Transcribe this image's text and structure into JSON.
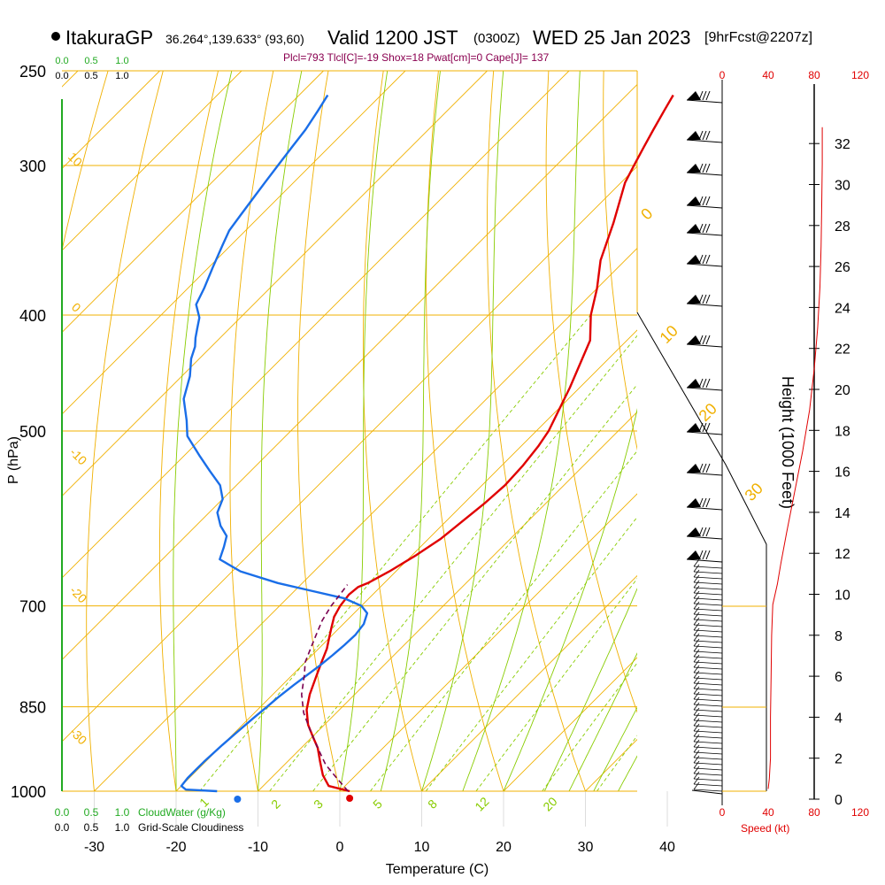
{
  "header": {
    "station": "ItakuraGP",
    "coords": "36.264°,139.633° (93,60)",
    "valid": "Valid 1200 JST",
    "utc": "(0300Z)",
    "date": "WED 25 Jan 2023",
    "forecast": "[9hrFcst@2207z]",
    "indices": "Plcl=793 Tlcl[C]=-19 Shox=18 Pwat[cm]=0 Cape[J]= 137"
  },
  "colors": {
    "isobar": "#f0b000",
    "isotherm": "#f0b000",
    "dry_adiabat": "#f0b000",
    "moist_adiabat": "#88cc00",
    "mixing_ratio": "#88cc00",
    "temperature": "#e00000",
    "dewpoint": "#1a6ee8",
    "parcel": "#7a0050",
    "cloud_water": "#22aa22",
    "speed": "#e00000",
    "barb": "#000000"
  },
  "chart_data": {
    "type": "line",
    "title": "Valid 1200 JST (0300Z) WED 25 Jan 2023",
    "xlabel": "Temperature (C)",
    "ylabel": "P (hPa)",
    "right_ylabel": "Height (1000 Feet)",
    "x_ticks": [
      "-30",
      "-20",
      "-10",
      "0",
      "10",
      "20",
      "30",
      "40"
    ],
    "y_ticks": [
      "250",
      "300",
      "400",
      "500",
      "700",
      "850",
      "1000"
    ],
    "height_ticks": [
      "0",
      "2",
      "4",
      "6",
      "8",
      "10",
      "12",
      "14",
      "16",
      "18",
      "20",
      "22",
      "24",
      "26",
      "28",
      "30",
      "32"
    ],
    "speed_ticks": [
      "0",
      "40",
      "80",
      "120"
    ],
    "speed_label": "Speed (kt)",
    "scale_top_green": [
      "0.0",
      "0.5",
      "1.0"
    ],
    "scale_top_black": [
      "0.0",
      "0.5",
      "1.0"
    ],
    "scale_bottom_green": [
      "0.0",
      "0.5",
      "1.0"
    ],
    "scale_bottom_black": [
      "0.0",
      "0.5",
      "1.0"
    ],
    "cloudwater_label": "CloudWater (g/Kg)",
    "cloudiness_label": "Grid-Scale Cloudiness",
    "moist_adiabat_labels": [
      "0",
      "10",
      "20",
      "30"
    ],
    "mixing_ratio_labels": [
      "1",
      "2",
      "3",
      "5",
      "8",
      "12",
      "20"
    ],
    "dry_adiabat_labels": [
      "10",
      "0",
      "-10",
      "-20",
      "-30"
    ],
    "series": [
      {
        "name": "Temperature",
        "points": [
          [
            1.2,
            1000
          ],
          [
            -2,
            990
          ],
          [
            -4,
            970
          ],
          [
            -6,
            945
          ],
          [
            -8,
            920
          ],
          [
            -10,
            900
          ],
          [
            -12,
            880
          ],
          [
            -14,
            855
          ],
          [
            -15.5,
            830
          ],
          [
            -17,
            800
          ],
          [
            -18,
            780
          ],
          [
            -19,
            760
          ],
          [
            -20,
            745
          ],
          [
            -21,
            730
          ],
          [
            -22,
            715
          ],
          [
            -22.6,
            700
          ],
          [
            -22.9,
            685
          ],
          [
            -22.7,
            675
          ],
          [
            -22,
            670
          ],
          [
            -20.8,
            655
          ],
          [
            -19.5,
            635
          ],
          [
            -18.5,
            615
          ],
          [
            -18,
            595
          ],
          [
            -17.5,
            575
          ],
          [
            -17.2,
            555
          ],
          [
            -17.4,
            535
          ],
          [
            -17.9,
            515
          ],
          [
            -18.5,
            500
          ],
          [
            -21.2,
            460
          ],
          [
            -24.5,
            420
          ],
          [
            -27.5,
            400
          ],
          [
            -30,
            380
          ],
          [
            -33,
            360
          ],
          [
            -36,
            335
          ],
          [
            -39.5,
            310
          ],
          [
            -40.5,
            300
          ],
          [
            -41.5,
            290
          ],
          [
            -42.5,
            280
          ],
          [
            -43.5,
            270
          ],
          [
            -44.3,
            262
          ]
        ]
      },
      {
        "name": "Dewpoint",
        "points": [
          [
            -15,
            1000
          ],
          [
            -19,
            997
          ],
          [
            -20,
            990
          ],
          [
            -20.2,
            975
          ],
          [
            -20.2,
            960
          ],
          [
            -20.2,
            945
          ],
          [
            -20.1,
            930
          ],
          [
            -20,
            915
          ],
          [
            -19.8,
            895
          ],
          [
            -19.5,
            870
          ],
          [
            -19.2,
            850
          ],
          [
            -19,
            835
          ],
          [
            -18.6,
            815
          ],
          [
            -18.2,
            800
          ],
          [
            -17.8,
            785
          ],
          [
            -17.5,
            770
          ],
          [
            -17.3,
            755
          ],
          [
            -17.2,
            740
          ],
          [
            -17.5,
            725
          ],
          [
            -18.4,
            710
          ],
          [
            -20,
            700
          ],
          [
            -23,
            690
          ],
          [
            -28,
            680
          ],
          [
            -33,
            670
          ],
          [
            -39,
            655
          ],
          [
            -43,
            640
          ],
          [
            -44,
            625
          ],
          [
            -45,
            612
          ],
          [
            -47,
            600
          ],
          [
            -49,
            585
          ],
          [
            -50,
            570
          ],
          [
            -52,
            555
          ],
          [
            -55,
            540
          ],
          [
            -58,
            525
          ],
          [
            -62,
            505
          ],
          [
            -64,
            490
          ],
          [
            -67,
            470
          ],
          [
            -69,
            450
          ],
          [
            -71,
            435
          ],
          [
            -72,
            425
          ],
          [
            -73,
            418
          ],
          [
            -74,
            410
          ],
          [
            -75,
            402
          ],
          [
            -77,
            392
          ],
          [
            -78,
            380
          ],
          [
            -79.5,
            365
          ],
          [
            -81,
            350
          ],
          [
            -82,
            340
          ],
          [
            -82.5,
            330
          ],
          [
            -83,
            320
          ],
          [
            -83.5,
            310
          ],
          [
            -84,
            300
          ],
          [
            -84.5,
            290
          ],
          [
            -85,
            280
          ],
          [
            -85.8,
            270
          ],
          [
            -86.5,
            262
          ]
        ]
      },
      {
        "name": "Parcel",
        "points": [
          [
            1,
            1000
          ],
          [
            -2,
            975
          ],
          [
            -5,
            950
          ],
          [
            -8,
            920
          ],
          [
            -11,
            890
          ],
          [
            -14,
            860
          ],
          [
            -16.5,
            830
          ],
          [
            -18.5,
            800
          ],
          [
            -20,
            780
          ],
          [
            -21,
            760
          ],
          [
            -22,
            740
          ],
          [
            -23,
            720
          ],
          [
            -23.7,
            700
          ],
          [
            -24,
            685
          ],
          [
            -24.3,
            672
          ]
        ]
      }
    ],
    "wind_speed_profile": [
      [
        0.5,
        40
      ],
      [
        1,
        41
      ],
      [
        2,
        42
      ],
      [
        4,
        42
      ],
      [
        6,
        42.5
      ],
      [
        8,
        43
      ],
      [
        9.5,
        44
      ],
      [
        10.5,
        48
      ],
      [
        11.5,
        51
      ],
      [
        13,
        56
      ],
      [
        15,
        63
      ],
      [
        17,
        70
      ],
      [
        19,
        76
      ],
      [
        21,
        80
      ],
      [
        23,
        83
      ],
      [
        25,
        85
      ],
      [
        27,
        86
      ],
      [
        29,
        86.5
      ],
      [
        31,
        87
      ],
      [
        32.8,
        87
      ]
    ],
    "cloud_water_dot": {
      "temperature": -12.5,
      "pressure": 1000
    }
  }
}
